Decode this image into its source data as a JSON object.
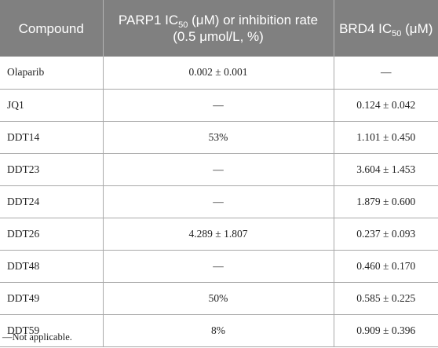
{
  "table": {
    "headers": [
      {
        "id": "compound",
        "parts": [
          "Compound"
        ]
      },
      {
        "id": "parp1",
        "parts": [
          "PARP1 IC",
          "50",
          " (μM) or inhibition rate (0.5 μmol/L, %)"
        ]
      },
      {
        "id": "brd4",
        "parts": [
          "BRD4 IC",
          "50",
          " (μM)"
        ]
      }
    ],
    "rows": [
      {
        "compound": "Olaparib",
        "parp1": "0.002 ± 0.001",
        "brd4": "—"
      },
      {
        "compound": "JQ1",
        "parp1": "—",
        "brd4": "0.124 ± 0.042"
      },
      {
        "compound": "DDT14",
        "parp1": "53%",
        "brd4": "1.101 ± 0.450"
      },
      {
        "compound": "DDT23",
        "parp1": "—",
        "brd4": "3.604 ± 1.453"
      },
      {
        "compound": "DDT24",
        "parp1": "—",
        "brd4": "1.879 ± 0.600"
      },
      {
        "compound": "DDT26",
        "parp1": "4.289 ± 1.807",
        "brd4": "0.237 ± 0.093"
      },
      {
        "compound": "DDT48",
        "parp1": "—",
        "brd4": "0.460 ± 0.170"
      },
      {
        "compound": "DDT49",
        "parp1": "50%",
        "brd4": "0.585 ± 0.225"
      },
      {
        "compound": "DDT59",
        "parp1": "8%",
        "brd4": "0.909 ± 0.396"
      }
    ]
  },
  "footnote": "—Not applicable."
}
